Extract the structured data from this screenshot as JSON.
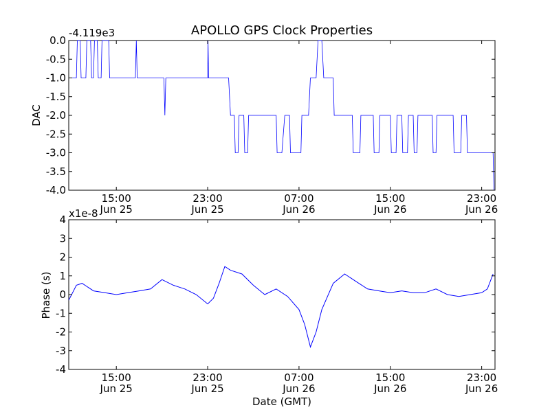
{
  "chart_data": [
    {
      "type": "line",
      "title": "APOLLO GPS Clock Properties",
      "ylabel": "DAC",
      "xlabel": "",
      "offset_label": "-4.119e3",
      "ylim": [
        -4.0,
        0.0
      ],
      "yticks": [
        "0.0",
        "-0.5",
        "-1.0",
        "-1.5",
        "-2.0",
        "-2.5",
        "-3.0",
        "-3.5",
        "-4.0"
      ],
      "xlim": [
        "2011-06-25 10:50",
        "2011-06-27 00:10"
      ],
      "xticks": [
        {
          "time": "15:00",
          "date": "Jun 25",
          "t": "2011-06-25 15:00"
        },
        {
          "time": "23:00",
          "date": "Jun 25",
          "t": "2011-06-25 23:00"
        },
        {
          "time": "07:00",
          "date": "Jun 26",
          "t": "2011-06-26 07:00"
        },
        {
          "time": "15:00",
          "date": "Jun 26",
          "t": "2011-06-26 15:00"
        },
        {
          "time": "23:00",
          "date": "Jun 26",
          "t": "2011-06-26 23:00"
        }
      ],
      "series": [
        {
          "color": "#0000ff",
          "x": [
            "2011-06-25 10:50",
            "2011-06-25 11:30",
            "2011-06-25 11:35",
            "2011-06-25 11:50",
            "2011-06-25 11:55",
            "2011-06-25 12:20",
            "2011-06-25 12:25",
            "2011-06-25 12:45",
            "2011-06-25 12:50",
            "2011-06-25 13:00",
            "2011-06-25 13:05",
            "2011-06-25 13:20",
            "2011-06-25 13:25",
            "2011-06-25 13:40",
            "2011-06-25 13:45",
            "2011-06-25 14:20",
            "2011-06-25 14:25",
            "2011-06-25 16:40",
            "2011-06-25 16:45",
            "2011-06-25 16:50",
            "2011-06-25 19:10",
            "2011-06-25 19:15",
            "2011-06-25 19:20",
            "2011-06-25 23:00",
            "2011-06-25 23:02",
            "2011-06-25 23:05",
            "2011-06-26 00:50",
            "2011-06-26 01:00",
            "2011-06-26 01:20",
            "2011-06-26 01:25",
            "2011-06-26 01:40",
            "2011-06-26 01:45",
            "2011-06-26 02:10",
            "2011-06-26 02:15",
            "2011-06-26 02:30",
            "2011-06-26 02:35",
            "2011-06-26 02:50",
            "2011-06-26 02:55",
            "2011-06-26 05:00",
            "2011-06-26 05:05",
            "2011-06-26 05:30",
            "2011-06-26 05:45",
            "2011-06-26 06:10",
            "2011-06-26 06:15",
            "2011-06-26 07:10",
            "2011-06-26 07:15",
            "2011-06-26 07:50",
            "2011-06-26 08:00",
            "2011-06-26 08:30",
            "2011-06-26 08:40",
            "2011-06-26 09:00",
            "2011-06-26 09:10",
            "2011-06-26 10:00",
            "2011-06-26 10:05",
            "2011-06-26 11:40",
            "2011-06-26 11:45",
            "2011-06-26 12:20",
            "2011-06-26 12:25",
            "2011-06-26 13:30",
            "2011-06-26 13:35",
            "2011-06-26 14:00",
            "2011-06-26 14:05",
            "2011-06-26 15:00",
            "2011-06-26 15:05",
            "2011-06-26 15:30",
            "2011-06-26 15:35",
            "2011-06-26 16:00",
            "2011-06-26 16:05",
            "2011-06-26 16:30",
            "2011-06-26 16:35",
            "2011-06-26 17:00",
            "2011-06-26 17:05",
            "2011-06-26 17:20",
            "2011-06-26 17:25",
            "2011-06-26 18:40",
            "2011-06-26 18:45",
            "2011-06-26 19:00",
            "2011-06-26 19:05",
            "2011-06-26 20:30",
            "2011-06-26 20:35",
            "2011-06-26 21:10",
            "2011-06-26 21:15",
            "2011-06-26 21:40",
            "2011-06-26 21:45",
            "2011-06-26 24:00",
            "2011-06-26 24:05"
          ],
          "y": [
            -1.0,
            -1.0,
            0.0,
            0.0,
            -1.0,
            -1.0,
            0.0,
            0.0,
            -1.0,
            -1.0,
            0.0,
            0.0,
            -1.0,
            -1.0,
            0.0,
            0.0,
            -1.0,
            -1.0,
            0.0,
            -1.0,
            -1.0,
            -2.0,
            -1.0,
            -1.0,
            0.0,
            -1.0,
            -1.0,
            -2.0,
            -2.0,
            -3.0,
            -3.0,
            -2.0,
            -2.0,
            -3.0,
            -3.0,
            -2.0,
            -2.0,
            -2.0,
            -2.0,
            -3.0,
            -3.0,
            -2.0,
            -2.0,
            -3.0,
            -3.0,
            -2.0,
            -2.0,
            -1.0,
            -1.0,
            0.0,
            0.0,
            -1.0,
            -1.0,
            -2.0,
            -2.0,
            -3.0,
            -3.0,
            -2.0,
            -2.0,
            -3.0,
            -3.0,
            -2.0,
            -2.0,
            -3.0,
            -3.0,
            -2.0,
            -2.0,
            -3.0,
            -3.0,
            -2.0,
            -2.0,
            -3.0,
            -3.0,
            -2.0,
            -2.0,
            -3.0,
            -3.0,
            -2.0,
            -2.0,
            -3.0,
            -3.0,
            -2.0,
            -2.0,
            -3.0,
            -3.0,
            -4.0
          ]
        }
      ]
    },
    {
      "type": "line",
      "title": "",
      "ylabel": "Phase (s)",
      "xlabel": "Date (GMT)",
      "offset_label": "x1e-8",
      "ylim": [
        -4,
        4
      ],
      "yticks": [
        "4",
        "3",
        "2",
        "1",
        "0",
        "-1",
        "-2",
        "-3",
        "-4"
      ],
      "xlim": [
        "2011-06-25 10:50",
        "2011-06-27 00:10"
      ],
      "xticks": [
        {
          "time": "15:00",
          "date": "Jun 25",
          "t": "2011-06-25 15:00"
        },
        {
          "time": "23:00",
          "date": "Jun 25",
          "t": "2011-06-25 23:00"
        },
        {
          "time": "07:00",
          "date": "Jun 26",
          "t": "2011-06-26 07:00"
        },
        {
          "time": "15:00",
          "date": "Jun 26",
          "t": "2011-06-26 15:00"
        },
        {
          "time": "23:00",
          "date": "Jun 26",
          "t": "2011-06-26 23:00"
        }
      ],
      "series": [
        {
          "color": "#0000ff",
          "x": [
            "2011-06-25 10:50",
            "2011-06-25 11:30",
            "2011-06-25 12:00",
            "2011-06-25 13:00",
            "2011-06-25 14:00",
            "2011-06-25 15:00",
            "2011-06-25 16:00",
            "2011-06-25 17:00",
            "2011-06-25 18:00",
            "2011-06-25 19:00",
            "2011-06-25 20:00",
            "2011-06-25 21:00",
            "2011-06-25 22:00",
            "2011-06-25 23:00",
            "2011-06-25 23:30",
            "2011-06-26 00:00",
            "2011-06-26 00:30",
            "2011-06-26 01:00",
            "2011-06-26 02:00",
            "2011-06-26 03:00",
            "2011-06-26 04:00",
            "2011-06-26 05:00",
            "2011-06-26 06:00",
            "2011-06-26 07:00",
            "2011-06-26 07:30",
            "2011-06-26 08:00",
            "2011-06-26 08:30",
            "2011-06-26 09:00",
            "2011-06-26 10:00",
            "2011-06-26 11:00",
            "2011-06-26 12:00",
            "2011-06-26 13:00",
            "2011-06-26 14:00",
            "2011-06-26 15:00",
            "2011-06-26 16:00",
            "2011-06-26 17:00",
            "2011-06-26 18:00",
            "2011-06-26 19:00",
            "2011-06-26 20:00",
            "2011-06-26 21:00",
            "2011-06-26 22:00",
            "2011-06-26 23:00",
            "2011-06-26 23:30",
            "2011-06-27 00:00"
          ],
          "y": [
            -0.3,
            0.5,
            0.6,
            0.2,
            0.1,
            0.0,
            0.1,
            0.2,
            0.3,
            0.8,
            0.5,
            0.3,
            0.0,
            -0.5,
            -0.2,
            0.6,
            1.5,
            1.3,
            1.1,
            0.5,
            0.0,
            0.3,
            -0.1,
            -0.8,
            -1.6,
            -2.8,
            -2.0,
            -0.8,
            0.6,
            1.1,
            0.7,
            0.3,
            0.2,
            0.1,
            0.2,
            0.1,
            0.1,
            0.3,
            0.0,
            -0.1,
            0.0,
            0.1,
            0.3,
            1.1
          ]
        }
      ]
    }
  ]
}
